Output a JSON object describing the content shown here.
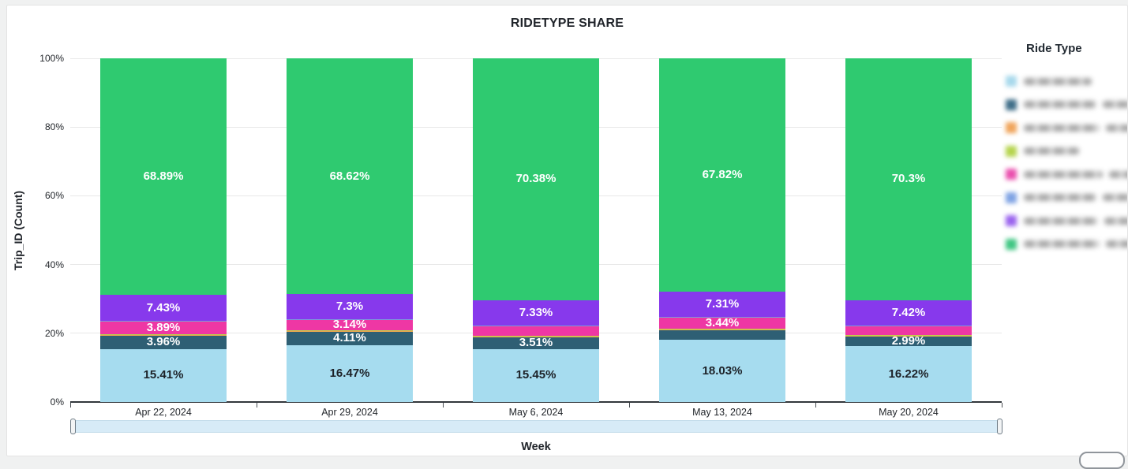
{
  "title": "RIDETYPE SHARE",
  "y_axis": {
    "title": "Trip_ID (Count)",
    "ticks": [
      "0%",
      "20%",
      "40%",
      "60%",
      "80%",
      "100%"
    ]
  },
  "x_axis": {
    "title": "Week",
    "categories": [
      "Apr 22, 2024",
      "Apr 29, 2024",
      "May 6, 2024",
      "May 13, 2024",
      "May 20, 2024"
    ]
  },
  "legend": {
    "title": "Ride Type",
    "items": [
      {
        "swatch_color": "#a8d9ec",
        "label_redacted": true,
        "streak_widths": [
          86
        ]
      },
      {
        "swatch_color": "#3f6e88",
        "label_redacted": true,
        "streak_widths": [
          92,
          48
        ]
      },
      {
        "swatch_color": "#f0a45a",
        "label_redacted": true,
        "streak_widths": [
          96,
          48
        ]
      },
      {
        "swatch_color": "#b5d44c",
        "label_redacted": true,
        "streak_widths": [
          70
        ]
      },
      {
        "swatch_color": "#ea4fae",
        "label_redacted": true,
        "streak_widths": [
          100,
          48
        ]
      },
      {
        "swatch_color": "#7fa3e4",
        "label_redacted": true,
        "streak_widths": [
          92,
          48
        ]
      },
      {
        "swatch_color": "#9a63ee",
        "label_redacted": true,
        "streak_widths": [
          94,
          48
        ]
      },
      {
        "swatch_color": "#3fc682",
        "label_redacted": true,
        "streak_widths": [
          96,
          42
        ]
      }
    ]
  },
  "chart_data": {
    "type": "bar",
    "stacked": true,
    "normalized_to_100_percent": true,
    "title": "RIDETYPE SHARE",
    "xlabel": "Week",
    "ylabel": "Trip_ID (Count)",
    "ylim": [
      0,
      100
    ],
    "grid": "horizontal",
    "legend_position": "right",
    "categories": [
      "Apr 22, 2024",
      "Apr 29, 2024",
      "May 6, 2024",
      "May 13, 2024",
      "May 20, 2024"
    ],
    "series": [
      {
        "name": "lightblue",
        "color": "#a6dcef",
        "label_text_color": "#1c2127",
        "values": [
          15.41,
          16.47,
          15.45,
          18.03,
          16.22
        ],
        "data_labels": [
          "15.41%",
          "16.47%",
          "15.45%",
          "18.03%",
          "16.22%"
        ]
      },
      {
        "name": "darkteal",
        "color": "#2e5f74",
        "label_text_color": "#ffffff",
        "values": [
          3.96,
          4.11,
          3.51,
          3.05,
          2.99
        ],
        "data_labels": [
          "3.96%",
          "4.11%",
          "3.51%",
          null,
          "2.99%"
        ]
      },
      {
        "name": "orange",
        "color": "#edaa4e",
        "label_text_color": "#ffffff",
        "values": [
          0.15,
          0.13,
          0.13,
          0.13,
          0.13
        ],
        "data_labels": [
          null,
          null,
          null,
          null,
          null
        ]
      },
      {
        "name": "yellowgreen",
        "color": "#b9d24b",
        "label_text_color": "#ffffff",
        "values": [
          0.15,
          0.13,
          0.12,
          0.12,
          0.12
        ],
        "data_labels": [
          null,
          null,
          null,
          null,
          null
        ]
      },
      {
        "name": "pink",
        "color": "#ee37a4",
        "label_text_color": "#ffffff",
        "values": [
          3.89,
          3.14,
          2.98,
          3.44,
          2.72
        ],
        "data_labels": [
          "3.89%",
          "3.14%",
          null,
          "3.44%",
          null
        ]
      },
      {
        "name": "blue",
        "color": "#7c9bd9",
        "label_text_color": "#ffffff",
        "values": [
          0.12,
          0.1,
          0.1,
          0.1,
          0.1
        ],
        "data_labels": [
          null,
          null,
          null,
          null,
          null
        ]
      },
      {
        "name": "purple",
        "color": "#8739ec",
        "label_text_color": "#ffffff",
        "values": [
          7.43,
          7.3,
          7.33,
          7.31,
          7.42
        ],
        "data_labels": [
          "7.43%",
          "7.3%",
          "7.33%",
          "7.31%",
          "7.42%"
        ]
      },
      {
        "name": "green",
        "color": "#2fca70",
        "label_text_color": "#ffffff",
        "values": [
          68.89,
          68.62,
          70.38,
          67.82,
          70.3
        ],
        "data_labels": [
          "68.89%",
          "68.62%",
          "70.38%",
          "67.82%",
          "70.3%"
        ]
      }
    ]
  }
}
